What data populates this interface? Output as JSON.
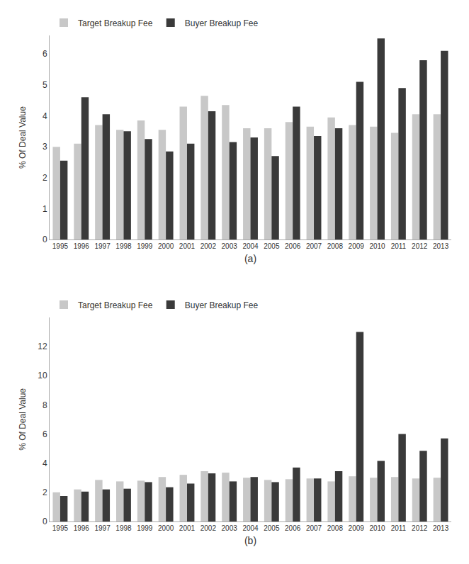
{
  "chart_data": [
    {
      "type": "bar",
      "xlabel": "(a)",
      "ylabel": "% Of Deal Value",
      "categories": [
        "1995",
        "1996",
        "1997",
        "1998",
        "1999",
        "2000",
        "2001",
        "2002",
        "2003",
        "2004",
        "2005",
        "2006",
        "2007",
        "2008",
        "2009",
        "2010",
        "2011",
        "2012",
        "2013"
      ],
      "series": [
        {
          "name": "Target Breakup Fee",
          "color": "#c8c8c8",
          "values": [
            3.0,
            3.1,
            3.7,
            3.55,
            3.85,
            3.55,
            4.3,
            4.65,
            4.35,
            3.6,
            3.6,
            3.8,
            3.65,
            3.95,
            3.7,
            3.65,
            3.45,
            4.05,
            4.05
          ]
        },
        {
          "name": "Buyer Breakup Fee",
          "color": "#3a3a3a",
          "values": [
            2.55,
            4.6,
            4.05,
            3.5,
            3.25,
            2.85,
            3.1,
            4.15,
            3.15,
            3.3,
            2.7,
            4.3,
            3.35,
            3.6,
            5.1,
            6.5,
            4.9,
            5.8,
            6.1
          ]
        }
      ],
      "ylim": [
        0,
        6.6
      ],
      "yticks": [
        0,
        1,
        2,
        3,
        4,
        5,
        6
      ],
      "legend": "upper left",
      "grid": false
    },
    {
      "type": "bar",
      "xlabel": "(b)",
      "ylabel": "% Of Deal Value",
      "categories": [
        "1995",
        "1996",
        "1997",
        "1998",
        "1999",
        "2000",
        "2001",
        "2002",
        "2003",
        "2004",
        "2005",
        "2006",
        "2007",
        "2008",
        "2009",
        "2010",
        "2011",
        "2012",
        "2013"
      ],
      "series": [
        {
          "name": "Target Breakup Fee",
          "color": "#c8c8c8",
          "values": [
            2.0,
            2.2,
            2.85,
            2.75,
            2.8,
            3.05,
            3.2,
            3.45,
            3.35,
            3.0,
            2.85,
            2.9,
            2.95,
            2.75,
            3.1,
            3.0,
            3.05,
            2.95,
            3.0
          ]
        },
        {
          "name": "Buyer Breakup Fee",
          "color": "#3a3a3a",
          "values": [
            1.75,
            2.05,
            2.2,
            2.25,
            2.7,
            2.35,
            2.6,
            3.3,
            2.75,
            3.05,
            2.7,
            3.7,
            2.95,
            3.45,
            13.0,
            4.15,
            6.0,
            4.85,
            5.7
          ]
        }
      ],
      "ylim": [
        0,
        14.0
      ],
      "yticks": [
        0,
        2,
        4,
        6,
        8,
        10,
        12
      ],
      "legend": "upper left",
      "grid": false
    }
  ]
}
